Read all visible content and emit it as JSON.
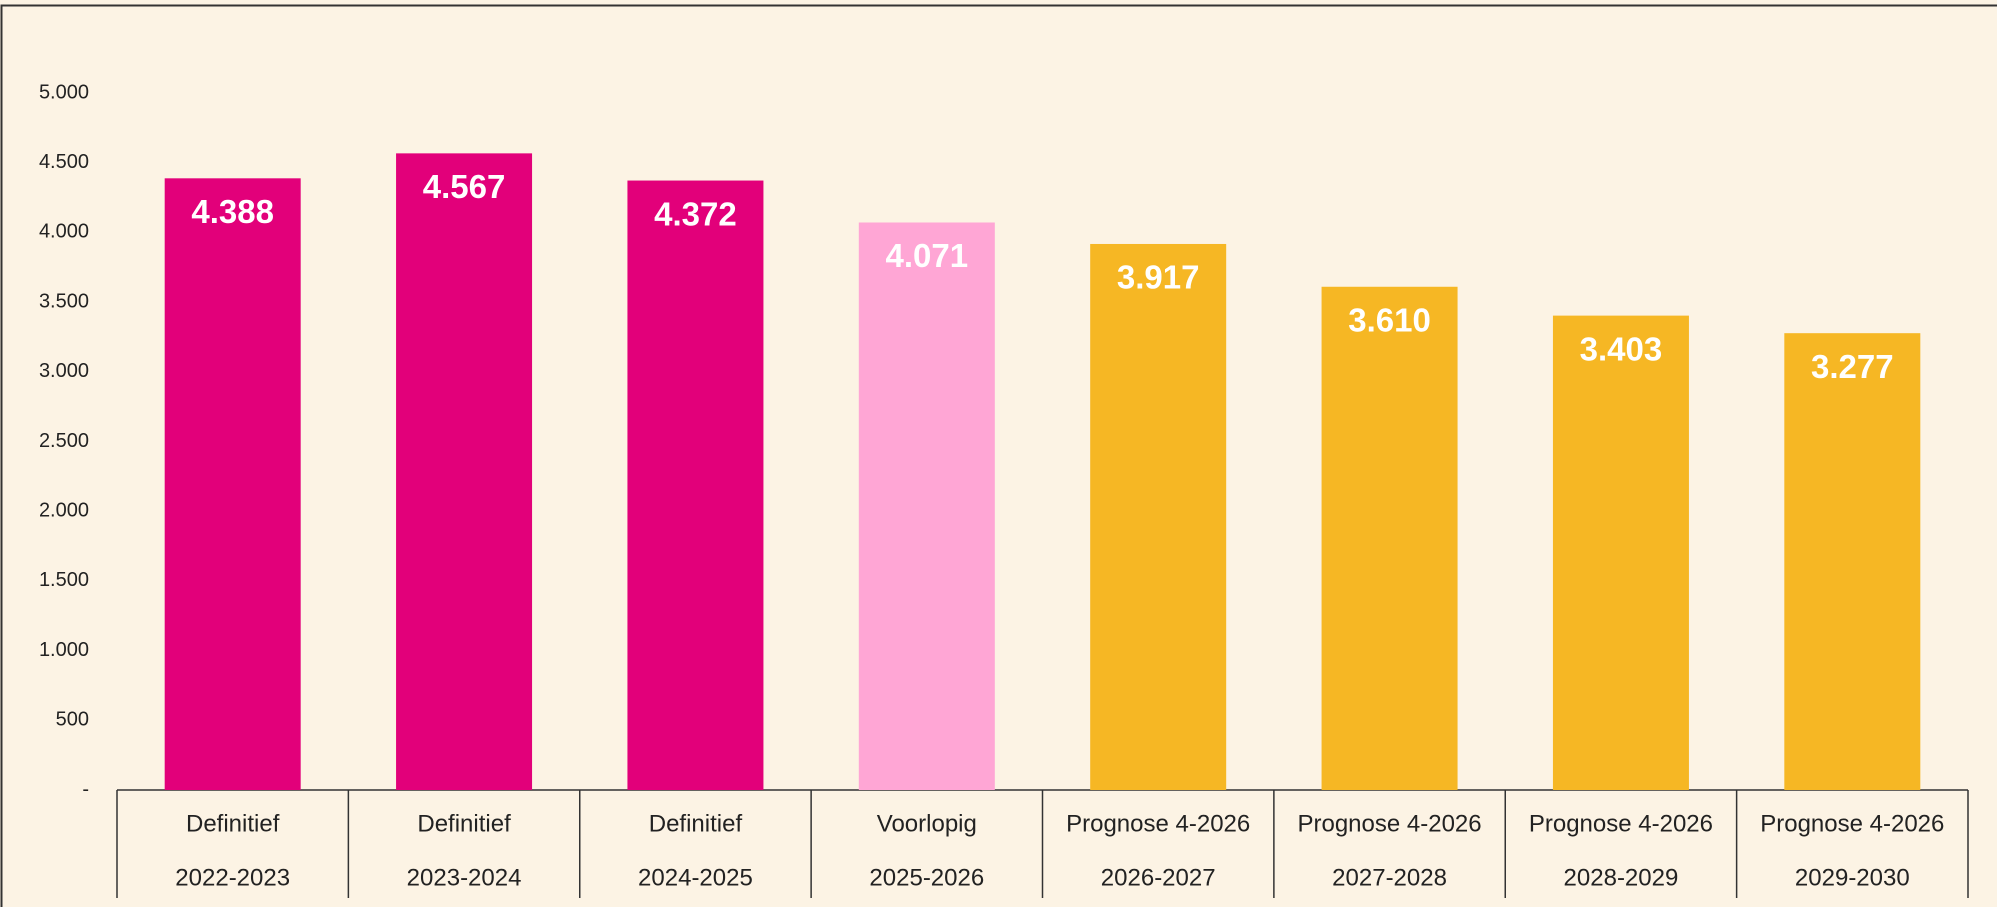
{
  "chart_data": {
    "type": "bar",
    "categories": [
      [
        "Definitief",
        "2022-2023"
      ],
      [
        "Definitief",
        "2023-2024"
      ],
      [
        "Definitief",
        "2024-2025"
      ],
      [
        "Voorlopig",
        "2025-2026"
      ],
      [
        "Prognose 4-2026",
        "2026-2027"
      ],
      [
        "Prognose 4-2026",
        "2027-2028"
      ],
      [
        "Prognose 4-2026",
        "2028-2029"
      ],
      [
        "Prognose 4-2026",
        "2029-2030"
      ]
    ],
    "values": [
      4388,
      4567,
      4372,
      4071,
      3917,
      3610,
      3403,
      3277
    ],
    "value_labels": [
      "4.388",
      "4.567",
      "4.372",
      "4.071",
      "3.917",
      "3.610",
      "3.403",
      "3.277"
    ],
    "colors": [
      "#e2007a",
      "#e2007a",
      "#e2007a",
      "#ffa6d5",
      "#f6b724",
      "#f6b724",
      "#f6b724",
      "#f6b724"
    ],
    "ylim": [
      0,
      5000
    ],
    "yticks": [
      {
        "value": 0,
        "label": "-"
      },
      500,
      {
        "value": 1000,
        "label": "1.000"
      },
      {
        "value": 1500,
        "label": "1.500"
      },
      {
        "value": 2000,
        "label": "2.000"
      },
      {
        "value": 2500,
        "label": "2.500"
      },
      {
        "value": 3000,
        "label": "3.000"
      },
      {
        "value": 3500,
        "label": "3.500"
      },
      {
        "value": 4000,
        "label": "4.000"
      },
      {
        "value": 4500,
        "label": "4.500"
      },
      {
        "value": 5000,
        "label": "5.000"
      }
    ],
    "grid": false
  }
}
